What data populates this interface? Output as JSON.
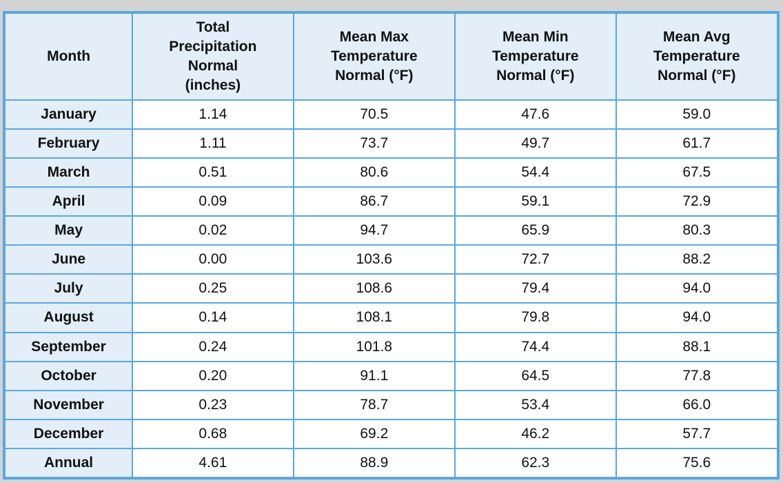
{
  "chart_data": {
    "type": "table",
    "columns": [
      "Month",
      "Total Precipitation Normal (inches)",
      "Mean Max Temperature Normal (°F)",
      "Mean Min Temperature Normal (°F)",
      "Mean Avg Temperature Normal (°F)"
    ],
    "rows": [
      [
        "January",
        "1.14",
        "70.5",
        "47.6",
        "59.0"
      ],
      [
        "February",
        "1.11",
        "73.7",
        "49.7",
        "61.7"
      ],
      [
        "March",
        "0.51",
        "80.6",
        "54.4",
        "67.5"
      ],
      [
        "April",
        "0.09",
        "86.7",
        "59.1",
        "72.9"
      ],
      [
        "May",
        "0.02",
        "94.7",
        "65.9",
        "80.3"
      ],
      [
        "June",
        "0.00",
        "103.6",
        "72.7",
        "88.2"
      ],
      [
        "July",
        "0.25",
        "108.6",
        "79.4",
        "94.0"
      ],
      [
        "August",
        "0.14",
        "108.1",
        "79.8",
        "94.0"
      ],
      [
        "September",
        "0.24",
        "101.8",
        "74.4",
        "88.1"
      ],
      [
        "October",
        "0.20",
        "91.1",
        "64.5",
        "77.8"
      ],
      [
        "November",
        "0.23",
        "78.7",
        "53.4",
        "66.0"
      ],
      [
        "December",
        "0.68",
        "69.2",
        "46.2",
        "57.7"
      ],
      [
        "Annual",
        "4.61",
        "88.9",
        "62.3",
        "75.6"
      ]
    ]
  },
  "colors": {
    "border": "#5aa7e0",
    "header_bg": "#e3eef9",
    "page_bg": "#d3d3d3"
  }
}
